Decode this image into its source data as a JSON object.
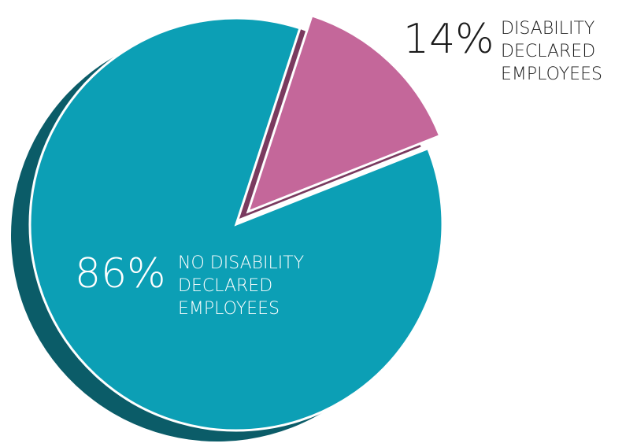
{
  "chart_data": {
    "type": "pie",
    "title": "",
    "slices": [
      {
        "label": "NO DISABILITY DECLARED EMPLOYEES",
        "label_lines": [
          "NO DISABILITY",
          "DECLARED",
          "EMPLOYEES"
        ],
        "value": 86,
        "value_label": "86%",
        "color": "#0c9fb5",
        "side_color": "#0b5c68",
        "text_color": "#ffffff",
        "exploded": false
      },
      {
        "label": "DISABILITY DECLARED EMPLOYEES",
        "label_lines": [
          "DISABILITY",
          "DECLARED",
          "EMPLOYEES"
        ],
        "value": 14,
        "value_label": "14%",
        "color": "#c4679a",
        "side_color": "#7a3a5f",
        "text_color": "#1a1a1a",
        "exploded": true
      }
    ],
    "legend": "none",
    "style": "3d-exploded"
  }
}
